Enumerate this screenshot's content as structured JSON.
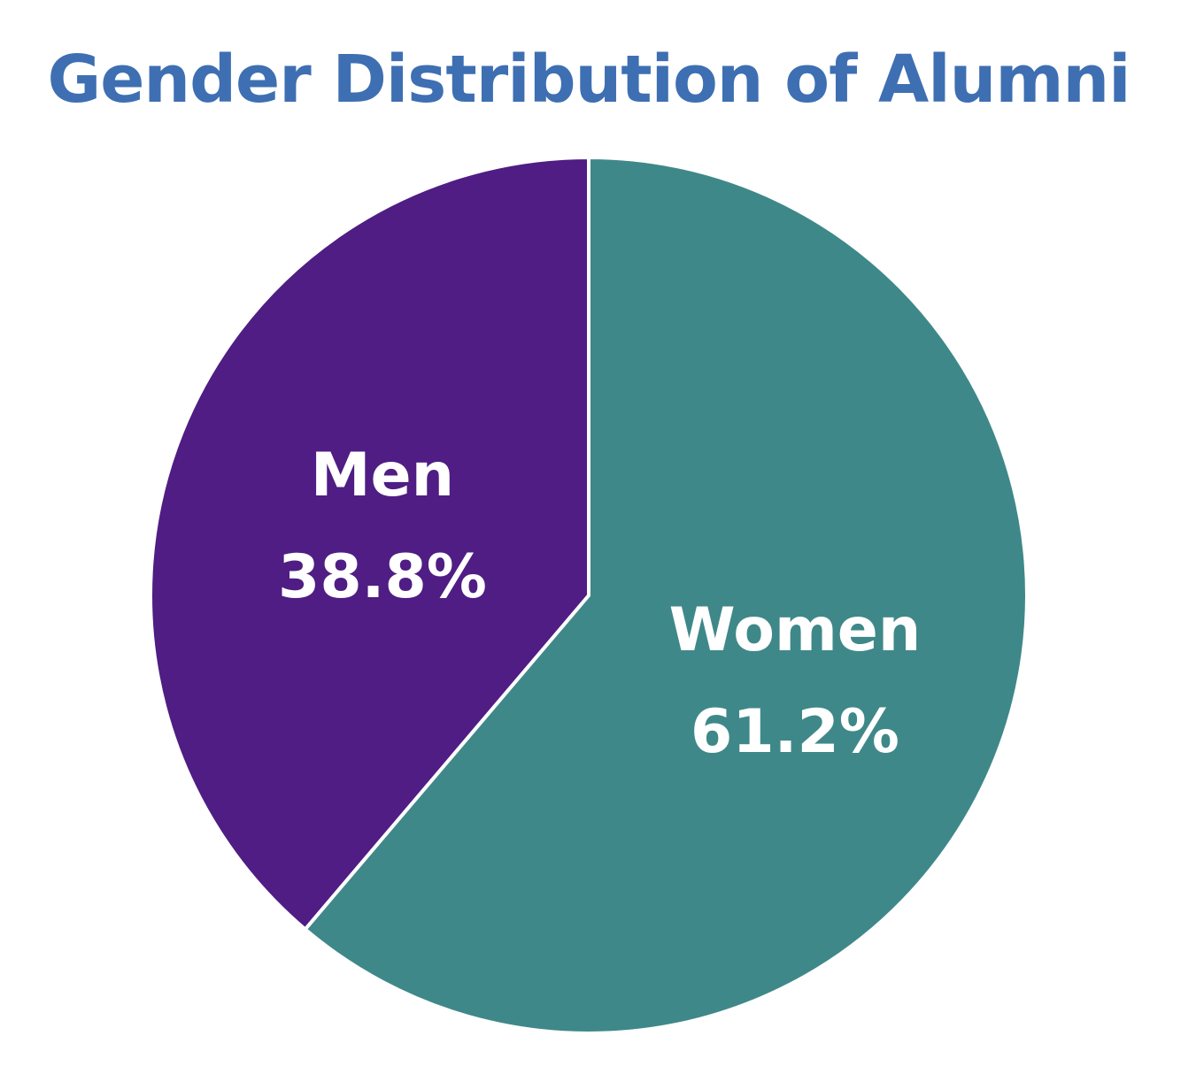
{
  "chart_data": {
    "type": "pie",
    "title": "Gender Distribution of Alumni",
    "title_color": "#3e6fb2",
    "start": "12 o'clock",
    "direction": "clockwise",
    "slices": [
      {
        "name": "Women",
        "value": 61.2,
        "value_label": "61.2%",
        "color": "#3f8889"
      },
      {
        "name": "Men",
        "value": 38.8,
        "value_label": "38.8%",
        "color": "#4f1d83"
      }
    ]
  }
}
